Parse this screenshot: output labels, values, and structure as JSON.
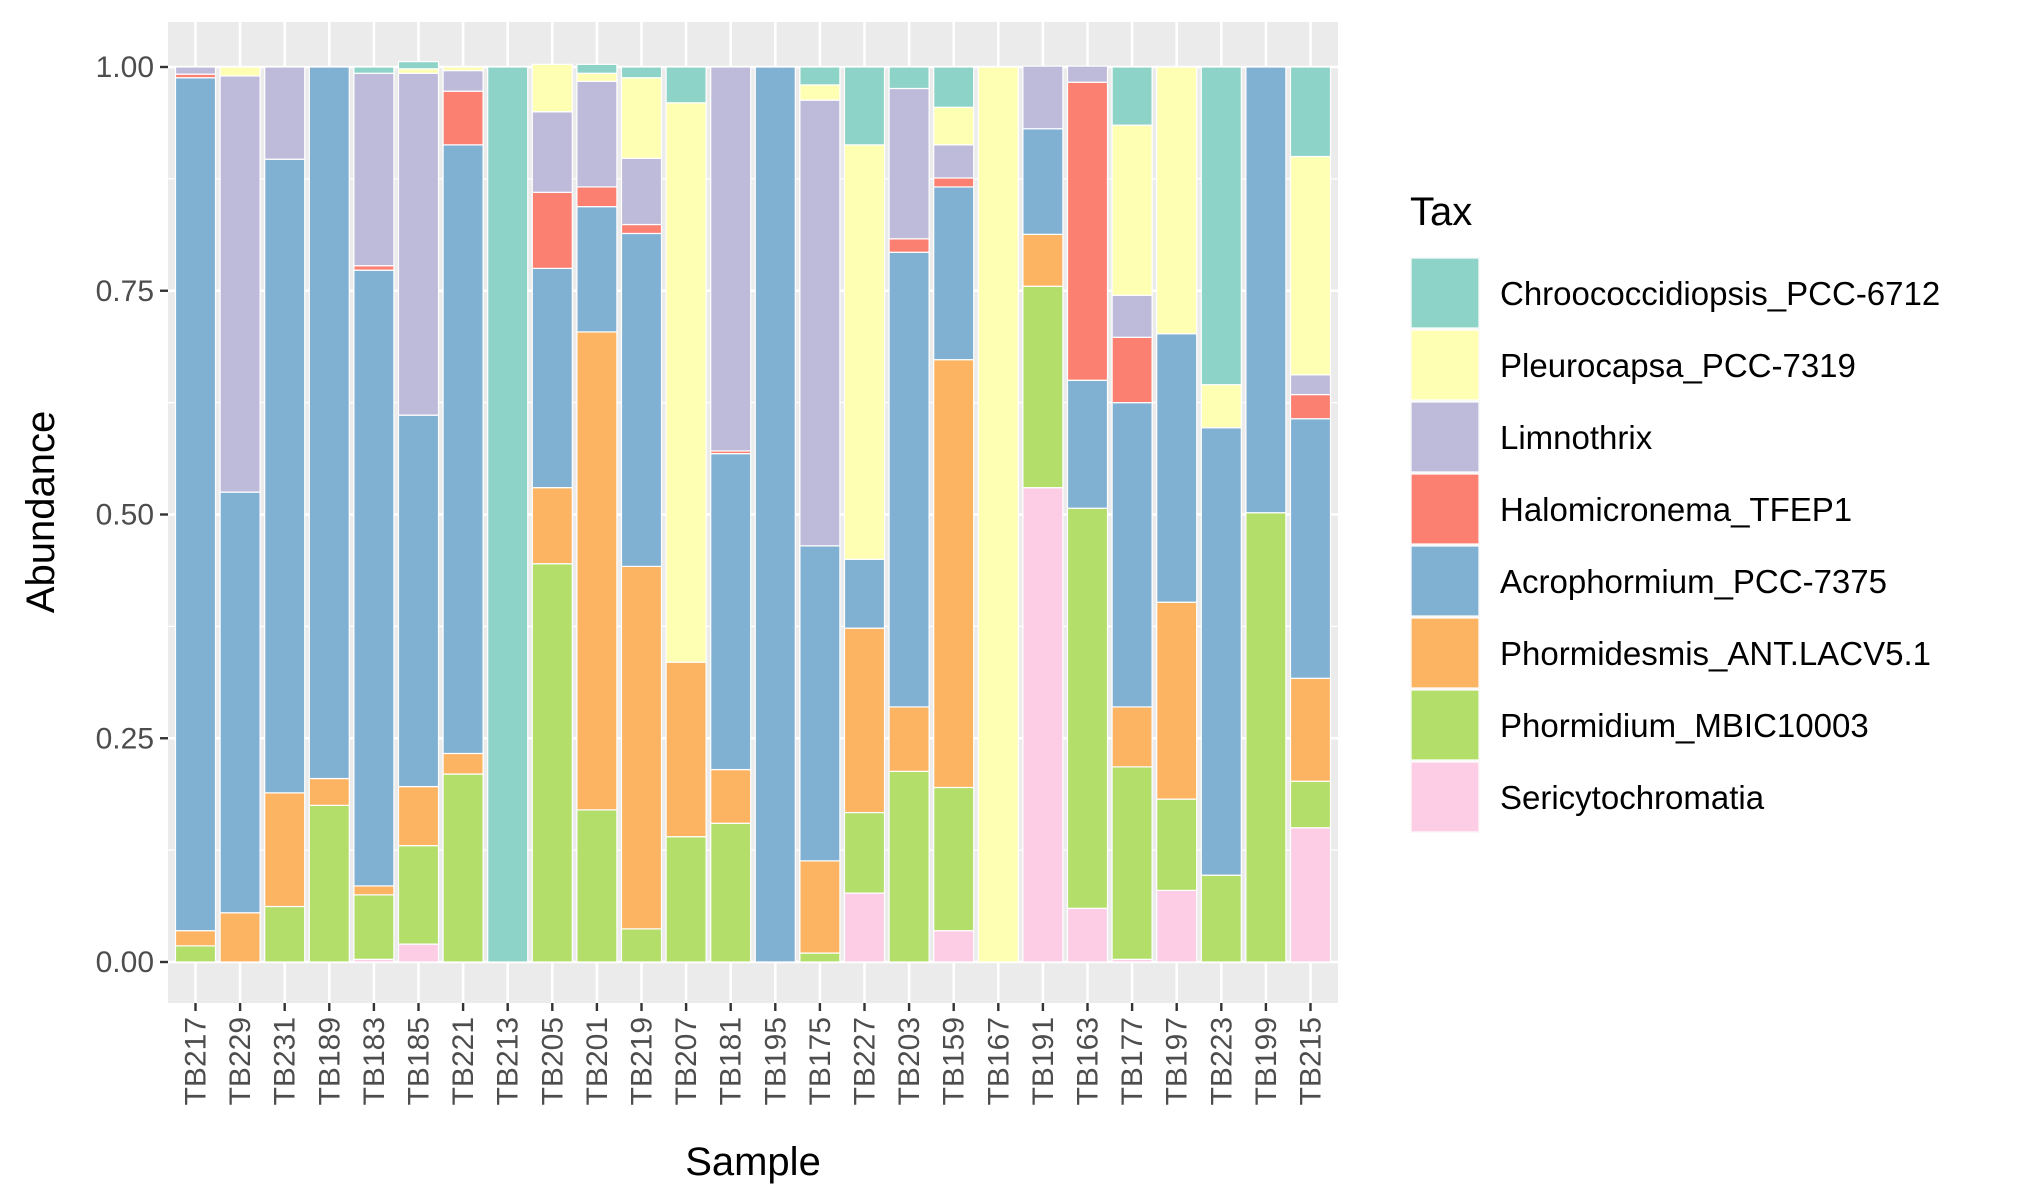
{
  "chart_data": {
    "type": "bar",
    "stacked": true,
    "xlabel": "Sample",
    "ylabel": "Abundance",
    "ylim": [
      0,
      1
    ],
    "y_ticks": [
      "0.00",
      "0.25",
      "0.50",
      "0.75",
      "1.00"
    ],
    "grid": true,
    "legend_title": "Tax",
    "legend_position": "right",
    "categories": [
      "TB217",
      "TB229",
      "TB231",
      "TB189",
      "TB183",
      "TB185",
      "TB221",
      "TB213",
      "TB205",
      "TB201",
      "TB219",
      "TB207",
      "TB181",
      "TB195",
      "TB175",
      "TB227",
      "TB203",
      "TB159",
      "TB167",
      "TB191",
      "TB163",
      "TB177",
      "TB197",
      "TB223",
      "TB199",
      "TB215"
    ],
    "series": [
      {
        "name": "Sericytochromatia",
        "color": "#FCCDE5",
        "values": [
          0,
          0,
          0,
          0,
          0.003,
          0.02,
          0,
          0,
          0,
          0,
          0,
          0,
          0,
          0,
          0,
          0.077,
          0,
          0.035,
          0,
          0.53,
          0.06,
          0.003,
          0.08,
          0,
          0,
          0.15
        ]
      },
      {
        "name": "Phormidium_MBIC10003",
        "color": "#B3DE69",
        "values": [
          0.018,
          0,
          0.062,
          0.175,
          0.072,
          0.11,
          0.21,
          0,
          0.445,
          0.17,
          0.037,
          0.14,
          0.155,
          0,
          0.01,
          0.09,
          0.213,
          0.16,
          0,
          0.225,
          0.447,
          0.215,
          0.102,
          0.097,
          0.502,
          0.052
        ]
      },
      {
        "name": "Phormidesmis_ANT.LACV5.1",
        "color": "#FDB462",
        "values": [
          0.017,
          0.055,
          0.127,
          0.03,
          0.01,
          0.066,
          0.023,
          0,
          0.085,
          0.534,
          0.405,
          0.195,
          0.06,
          0,
          0.103,
          0.206,
          0.072,
          0.478,
          0,
          0.058,
          0,
          0.067,
          0.22,
          0,
          0,
          0.115
        ]
      },
      {
        "name": "Acrophormium_PCC-7375",
        "color": "#80B1D3",
        "values": [
          0.953,
          0.47,
          0.708,
          0.795,
          0.688,
          0.415,
          0.68,
          0,
          0.245,
          0.14,
          0.372,
          0,
          0.353,
          1.0,
          0.352,
          0.077,
          0.508,
          0.193,
          0,
          0.118,
          0.143,
          0.34,
          0.3,
          0.5,
          0.498,
          0.29
        ]
      },
      {
        "name": "Halomicronema_TFEP1",
        "color": "#FB8072",
        "values": [
          0.004,
          0,
          0,
          0,
          0.005,
          0,
          0.06,
          0,
          0.085,
          0.022,
          0.01,
          0,
          0.003,
          0,
          0,
          0,
          0.015,
          0.01,
          0,
          0,
          0.333,
          0.073,
          0,
          0,
          0,
          0.027
        ]
      },
      {
        "name": "Limnothrix",
        "color": "#BEBADA",
        "values": [
          0.008,
          0.465,
          0.103,
          0,
          0.215,
          0.382,
          0.023,
          0,
          0.09,
          0.118,
          0.074,
          0,
          0.429,
          0,
          0.498,
          0,
          0.168,
          0.037,
          0,
          0.07,
          0.018,
          0.047,
          0,
          0,
          0,
          0.022
        ]
      },
      {
        "name": "Pleurocapsa_PCC-7319",
        "color": "#FFFFB3",
        "values": [
          0,
          0.01,
          0,
          0,
          0,
          0.005,
          0.004,
          0,
          0.053,
          0.009,
          0.09,
          0.625,
          0,
          0,
          0.017,
          0.463,
          0,
          0.042,
          1.0,
          0,
          0,
          0.19,
          0.298,
          0.048,
          0,
          0.244
        ]
      },
      {
        "name": "Chroococcidiopsis_PCC-6712",
        "color": "#8DD3C7",
        "values": [
          0,
          0,
          0,
          0,
          0.007,
          0.008,
          0,
          1.0,
          0,
          0.01,
          0.012,
          0.04,
          0,
          0,
          0.02,
          0.087,
          0.024,
          0.045,
          0,
          0,
          0,
          0.065,
          0,
          0.355,
          0,
          0.1
        ]
      }
    ]
  }
}
